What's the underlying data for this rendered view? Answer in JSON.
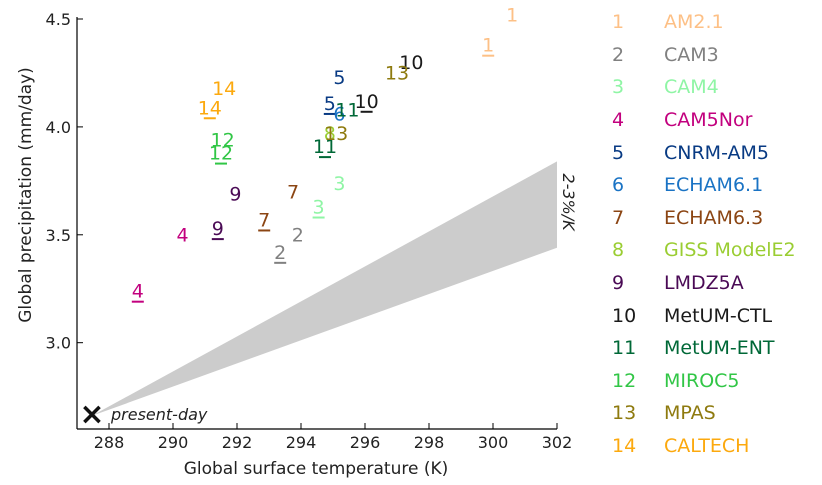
{
  "chart_data": {
    "type": "scatter",
    "xlabel": "Global surface temperature (K)",
    "ylabel": "Global precipitation (mm/day)",
    "xlim": [
      287,
      302
    ],
    "ylim": [
      2.6,
      4.5
    ],
    "xticks": [
      288,
      290,
      292,
      294,
      296,
      298,
      300,
      302
    ],
    "yticks": [
      3.0,
      3.5,
      4.0,
      4.5
    ],
    "x_tick_labels": [
      "288",
      "290",
      "292",
      "294",
      "296",
      "298",
      "300",
      "302"
    ],
    "y_tick_labels": [
      "3.0",
      "3.5",
      "4.0",
      "4.5"
    ],
    "present_day": {
      "x": 287.45,
      "y": 2.66,
      "label": "present-day",
      "marker": "×"
    },
    "sensitivity_band": {
      "label": "2-3%/K",
      "low_end_y": 3.44,
      "high_end_y": 3.84,
      "at_x": 302,
      "color": "#cccccc"
    },
    "series": [
      {
        "name": "AM2.1",
        "number": "1",
        "color": "#fdc086",
        "points": [
          {
            "x": 299.85,
            "y": 4.33,
            "underline": true
          },
          {
            "x": 300.6,
            "y": 4.47,
            "underline": false
          }
        ]
      },
      {
        "name": "CAM3",
        "number": "2",
        "color": "#808080",
        "points": [
          {
            "x": 293.35,
            "y": 3.37,
            "underline": true
          },
          {
            "x": 293.9,
            "y": 3.45,
            "underline": false
          }
        ]
      },
      {
        "name": "CAM4",
        "number": "3",
        "color": "#8ff5a5",
        "points": [
          {
            "x": 294.55,
            "y": 3.58,
            "underline": true
          },
          {
            "x": 295.2,
            "y": 3.69,
            "underline": false
          }
        ]
      },
      {
        "name": "CAM5Nor",
        "number": "4",
        "color": "#c2007e",
        "points": [
          {
            "x": 288.9,
            "y": 3.19,
            "underline": true
          },
          {
            "x": 290.3,
            "y": 3.45,
            "underline": false
          }
        ]
      },
      {
        "name": "CNRM-AM5",
        "number": "5",
        "color": "#083a83",
        "points": [
          {
            "x": 294.9,
            "y": 4.06,
            "underline": true
          },
          {
            "x": 295.2,
            "y": 4.18,
            "underline": false
          }
        ]
      },
      {
        "name": "ECHAM6.1",
        "number": "6",
        "color": "#1a73c4",
        "points": [
          {
            "x": 295.2,
            "y": 4.01,
            "underline": false
          }
        ]
      },
      {
        "name": "ECHAM6.3",
        "number": "7",
        "color": "#8b4513",
        "points": [
          {
            "x": 292.85,
            "y": 3.52,
            "underline": true
          },
          {
            "x": 293.75,
            "y": 3.65,
            "underline": false
          }
        ]
      },
      {
        "name": "GISS ModelE2",
        "number": "8",
        "color": "#9acd32",
        "points": [
          {
            "x": 294.9,
            "y": 3.92,
            "underline": false
          }
        ]
      },
      {
        "name": "LMDZ5A",
        "number": "9",
        "color": "#4a0a55",
        "points": [
          {
            "x": 291.4,
            "y": 3.48,
            "underline": true
          },
          {
            "x": 291.95,
            "y": 3.64,
            "underline": false
          }
        ]
      },
      {
        "name": "MetUM-CTL",
        "number": "10",
        "color": "#1a1a1a",
        "points": [
          {
            "x": 296.05,
            "y": 4.07,
            "underline": true
          },
          {
            "x": 297.45,
            "y": 4.25,
            "underline": false
          }
        ]
      },
      {
        "name": "MetUM-ENT",
        "number": "11",
        "color": "#006837",
        "points": [
          {
            "x": 294.75,
            "y": 3.86,
            "underline": true
          },
          {
            "x": 295.45,
            "y": 4.03,
            "underline": false
          }
        ]
      },
      {
        "name": "MIROC5",
        "number": "12",
        "color": "#31c646",
        "points": [
          {
            "x": 291.5,
            "y": 3.83,
            "underline": true
          },
          {
            "x": 291.55,
            "y": 3.89,
            "underline": false
          }
        ]
      },
      {
        "name": "MPAS",
        "number": "13",
        "color": "#8e7a0e",
        "points": [
          {
            "x": 295.1,
            "y": 3.92,
            "underline": false
          },
          {
            "x": 297.0,
            "y": 4.2,
            "underline": false
          }
        ]
      },
      {
        "name": "CALTECH",
        "number": "14",
        "color": "#fca90e",
        "points": [
          {
            "x": 291.15,
            "y": 4.04,
            "underline": true
          },
          {
            "x": 291.6,
            "y": 4.13,
            "underline": false
          }
        ]
      }
    ],
    "legend_position": "right"
  }
}
